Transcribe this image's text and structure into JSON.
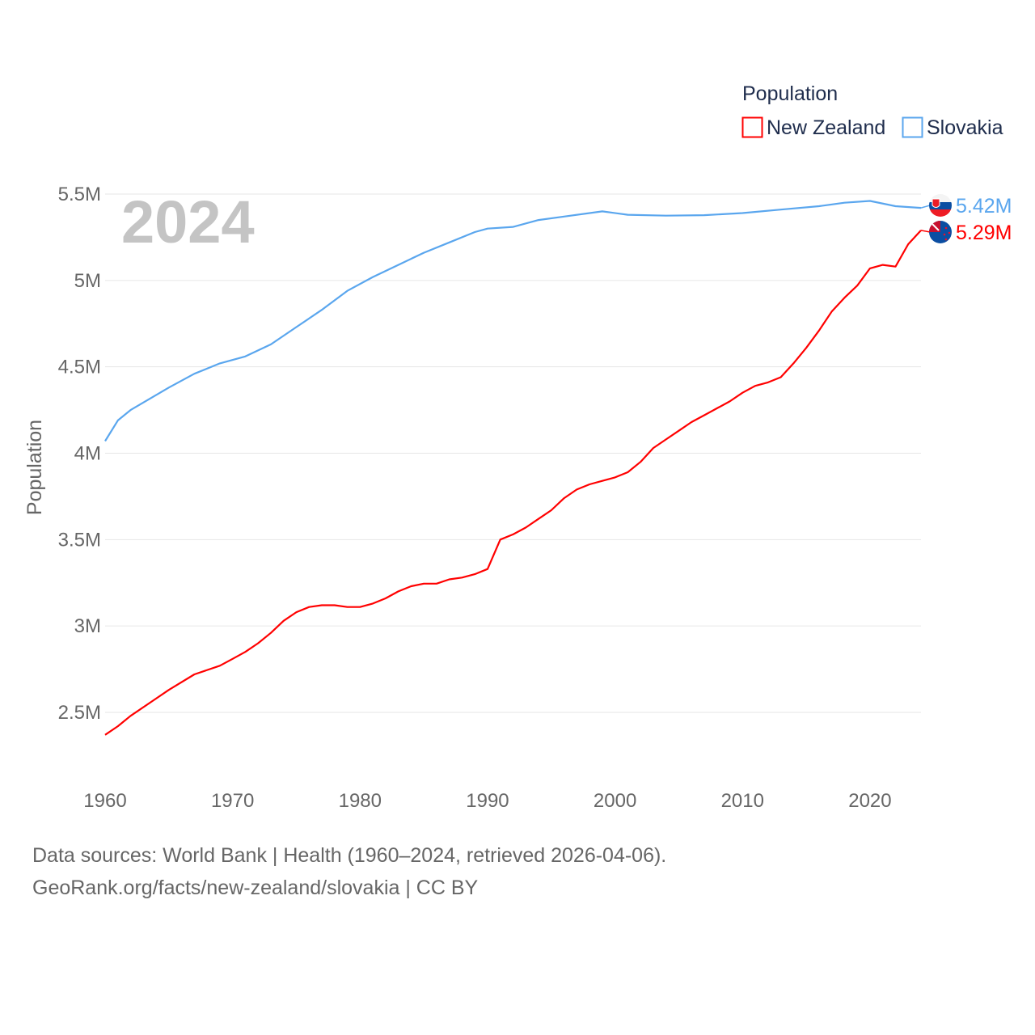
{
  "chart_data": {
    "type": "line",
    "title": "Population",
    "ylabel": "Population",
    "xlabel": "",
    "year_watermark": "2024",
    "xlim": [
      1960,
      2024
    ],
    "ylim": [
      2.2,
      5.55
    ],
    "y_unit": "millions",
    "x_ticks": [
      1960,
      1970,
      1980,
      1990,
      2000,
      2010,
      2020
    ],
    "y_ticks": [
      2.5,
      3,
      3.5,
      4,
      4.5,
      5,
      5.5
    ],
    "y_tick_labels": [
      "2.5M",
      "3M",
      "3.5M",
      "4M",
      "4.5M",
      "5M",
      "5.5M"
    ],
    "grid": true,
    "legend_position": "top-right",
    "series": [
      {
        "name": "New Zealand",
        "color": "#ff0000",
        "end_label": "5.29M",
        "flag": "new-zealand-flag",
        "x": [
          1960,
          1961,
          1962,
          1964,
          1965,
          1967,
          1969,
          1970,
          1971,
          1972,
          1973,
          1974,
          1975,
          1976,
          1977,
          1978,
          1979,
          1980,
          1981,
          1982,
          1983,
          1984,
          1985,
          1986,
          1987,
          1988,
          1989,
          1990,
          1991,
          1992,
          1993,
          1994,
          1995,
          1996,
          1997,
          1998,
          1999,
          2000,
          2001,
          2002,
          2003,
          2004,
          2005,
          2006,
          2007,
          2008,
          2009,
          2010,
          2011,
          2012,
          2013,
          2014,
          2015,
          2016,
          2017,
          2018,
          2019,
          2020,
          2021,
          2022,
          2023,
          2024
        ],
        "y": [
          2.37,
          2.42,
          2.48,
          2.58,
          2.63,
          2.72,
          2.77,
          2.81,
          2.85,
          2.9,
          2.96,
          3.03,
          3.08,
          3.11,
          3.12,
          3.12,
          3.11,
          3.11,
          3.13,
          3.16,
          3.2,
          3.23,
          3.245,
          3.245,
          3.27,
          3.28,
          3.3,
          3.33,
          3.5,
          3.53,
          3.57,
          3.62,
          3.67,
          3.74,
          3.79,
          3.82,
          3.84,
          3.86,
          3.89,
          3.95,
          4.03,
          4.08,
          4.13,
          4.18,
          4.22,
          4.26,
          4.3,
          4.35,
          4.39,
          4.41,
          4.44,
          4.52,
          4.61,
          4.71,
          4.82,
          4.9,
          4.97,
          5.07,
          5.09,
          5.08,
          5.21,
          5.29
        ]
      },
      {
        "name": "Slovakia",
        "color": "#5aa6ee",
        "end_label": "5.42M",
        "flag": "slovakia-flag",
        "x": [
          1960,
          1961,
          1962,
          1965,
          1967,
          1969,
          1971,
          1973,
          1975,
          1977,
          1979,
          1981,
          1983,
          1985,
          1987,
          1989,
          1990,
          1992,
          1994,
          1996,
          1999,
          2001,
          2004,
          2007,
          2010,
          2013,
          2016,
          2018,
          2020,
          2022,
          2024
        ],
        "y": [
          4.07,
          4.19,
          4.25,
          4.38,
          4.46,
          4.52,
          4.56,
          4.63,
          4.73,
          4.83,
          4.94,
          5.02,
          5.09,
          5.16,
          5.22,
          5.28,
          5.3,
          5.31,
          5.35,
          5.37,
          5.4,
          5.38,
          5.375,
          5.378,
          5.39,
          5.41,
          5.43,
          5.45,
          5.46,
          5.43,
          5.42
        ]
      }
    ]
  },
  "footer": {
    "line1": "Data sources: World Bank | Health (1960–2024, retrieved 2026-04-06).",
    "line2": "GeoRank.org/facts/new-zealand/slovakia | CC BY"
  }
}
